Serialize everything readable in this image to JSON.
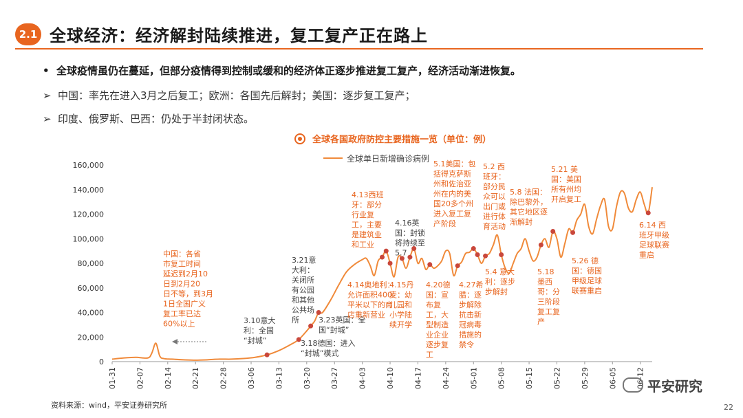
{
  "header": {
    "badge": "2.1",
    "title": "全球经济：经济解封陆续推进，复工复产正在路上"
  },
  "bullets": {
    "main": "全球疫情虽仍在蔓延，但部分疫情得到控制或缓和的经济体正逐步推进复工复产，经济活动渐进恢复。",
    "line2": "中国：率先在进入3月之后复工；欧洲：各国先后解封；美国：逐步复工复产；",
    "line3": "印度、俄罗斯、巴西：仍处于半封闭状态。"
  },
  "colors": {
    "accent": "#e8651f",
    "line": "#f08a3a",
    "marker": "#c9473b"
  },
  "chart_data": {
    "type": "line",
    "title": "全球各国政府防控主要措施一览（单位：例）",
    "series": [
      {
        "name": "全球单日新增确诊病例",
        "x": [
          "01-31",
          "02-03",
          "02-06",
          "02-09",
          "02-10",
          "02-11",
          "02-12",
          "02-13",
          "02-15",
          "02-18",
          "02-21",
          "02-24",
          "02-27",
          "03-01",
          "03-04",
          "03-07",
          "03-10",
          "03-13",
          "03-16",
          "03-18",
          "03-20",
          "03-21",
          "03-22",
          "03-23",
          "03-24",
          "03-26",
          "03-28",
          "03-30",
          "04-01",
          "04-03",
          "04-04",
          "04-05",
          "04-06",
          "04-07",
          "04-08",
          "04-09",
          "04-10",
          "04-11",
          "04-12",
          "04-13",
          "04-14",
          "04-15",
          "04-16",
          "04-17",
          "04-18",
          "04-19",
          "04-20",
          "04-21",
          "04-22",
          "04-23",
          "04-24",
          "04-25",
          "04-26",
          "04-27",
          "04-28",
          "04-29",
          "04-30",
          "05-01",
          "05-02",
          "05-03",
          "05-04",
          "05-05",
          "05-06",
          "05-07",
          "05-08",
          "05-09",
          "05-10",
          "05-11",
          "05-12",
          "05-13",
          "05-14",
          "05-15",
          "05-16",
          "05-17",
          "05-18",
          "05-19",
          "05-20",
          "05-21",
          "05-22",
          "05-23",
          "05-24",
          "05-25",
          "05-26",
          "05-27",
          "05-28",
          "05-29",
          "05-30",
          "05-31",
          "06-01",
          "06-02",
          "06-03",
          "06-04",
          "06-05",
          "06-06",
          "06-07",
          "06-08",
          "06-09",
          "06-10",
          "06-11",
          "06-12",
          "06-13",
          "06-14",
          "06-15"
        ],
        "values": [
          2000,
          3000,
          3500,
          3000,
          7000,
          15000,
          4500,
          2500,
          2000,
          1500,
          1200,
          1500,
          2000,
          2000,
          2500,
          3500,
          5500,
          9000,
          14000,
          18000,
          25000,
          29000,
          33000,
          40000,
          40000,
          50000,
          62000,
          73000,
          79000,
          83000,
          84000,
          78000,
          70000,
          82000,
          85000,
          90000,
          80000,
          69000,
          85000,
          84000,
          76000,
          85000,
          92000,
          80000,
          84000,
          75000,
          79000,
          76000,
          78000,
          82000,
          90000,
          88000,
          70000,
          78000,
          81000,
          88000,
          89000,
          92000,
          87000,
          80000,
          86000,
          88000,
          95000,
          103000,
          87000,
          76000,
          72000,
          80000,
          88000,
          92000,
          100000,
          90000,
          82000,
          85000,
          95000,
          100000,
          93000,
          106000,
          100000,
          85000,
          96000,
          108000,
          105000,
          115000,
          120000,
          128000,
          110000,
          104000,
          116000,
          127000,
          132000,
          110000,
          108000,
          126000,
          138000,
          137000,
          125000,
          122000,
          132000,
          138000,
          128000,
          121000,
          142000
        ]
      }
    ],
    "xticks": [
      "01-31",
      "02-07",
      "02-14",
      "02-21",
      "02-28",
      "03-06",
      "03-13",
      "03-20",
      "03-27",
      "04-03",
      "04-10",
      "04-17",
      "04-24",
      "05-01",
      "05-08",
      "05-15",
      "05-22",
      "05-29",
      "06-05",
      "06-12"
    ],
    "yticks": [
      "0",
      "20,000",
      "40,000",
      "60,000",
      "80,000",
      "100,000",
      "120,000",
      "140,000",
      "160,000"
    ],
    "ylim": [
      0,
      160000
    ],
    "markers": [
      "03-10",
      "03-18",
      "03-21",
      "03-23",
      "04-08",
      "04-09",
      "04-10",
      "04-13",
      "04-15",
      "04-16",
      "04-20",
      "04-27",
      "05-01",
      "05-02",
      "05-04",
      "05-08",
      "05-18",
      "05-21",
      "05-26",
      "06-14"
    ],
    "annotations": [
      {
        "x": "02-10",
        "lines": [
          "中国：各省",
          "市复工时间",
          "延迟到2月10",
          "日到2月20",
          "日不等，到3月",
          "1日全国广义",
          "复工率已达",
          "60%以上"
        ]
      },
      {
        "x": "03-10",
        "lines": [
          "3.10意大",
          "利：全国",
          "“封城”"
        ]
      },
      {
        "x": "03-18",
        "lines": [
          "3.18德国：进入",
          "“封城”模式"
        ]
      },
      {
        "x": "03-21",
        "lines": [
          "3.21意",
          "大利：",
          "关闭所",
          "有公园",
          "和其他",
          "公共场",
          "所"
        ]
      },
      {
        "x": "03-23",
        "lines": [
          "3.23英国：全",
          "国“封城”"
        ]
      },
      {
        "x": "04-13",
        "lines": [
          "4.13西班",
          "牙：部分",
          "行业复",
          "工，主要",
          "是建筑业",
          "和工业"
        ]
      },
      {
        "x": "04-14",
        "lines": [
          "4.14奥地利：",
          "允许面积400",
          "平米以下的商",
          "店重新营业"
        ]
      },
      {
        "x": "04-15",
        "lines": [
          "4.15丹",
          "麦：幼",
          "儿园和",
          "小学陆",
          "续开学"
        ]
      },
      {
        "x": "04-16",
        "lines": [
          "4.16英",
          "国：封锁",
          "将持续至",
          "5.7"
        ]
      },
      {
        "x": "04-20",
        "lines": [
          "4.20德",
          "国：宣",
          "布复",
          "工，大",
          "型制造",
          "业企业",
          "逐步复",
          "工"
        ]
      },
      {
        "x": "04-27",
        "lines": [
          "4.27希",
          "腊：逐",
          "步解除",
          "抗击新",
          "冠病毒",
          "措施的",
          "禁令"
        ]
      },
      {
        "x": "05-01",
        "lines": [
          "5.1美国：包",
          "括得克萨斯",
          "州和佐治亚",
          "州在内的美",
          "国20多个州",
          "进入复工复",
          "产阶段"
        ]
      },
      {
        "x": "05-02",
        "lines": [
          "5.2 西",
          "班牙：",
          "部分民",
          "众可以",
          "出门或",
          "进行体",
          "育活动"
        ]
      },
      {
        "x": "05-04",
        "lines": [
          "5.4 意大",
          "利：逐步",
          "步解封"
        ]
      },
      {
        "x": "05-08",
        "lines": [
          "5.8 法国：",
          "除巴黎外，",
          "其它地区逐",
          "渐解封"
        ]
      },
      {
        "x": "05-18",
        "lines": [
          "5.18",
          "墨西",
          "哥：分",
          "三阶段",
          "复工复",
          "产"
        ]
      },
      {
        "x": "05-21",
        "lines": [
          "5.21 美",
          "国：美国",
          "所有州均",
          "开启复工"
        ]
      },
      {
        "x": "05-26",
        "lines": [
          "5.26 德",
          "国：德国",
          "甲级足球",
          "联赛重启"
        ]
      },
      {
        "x": "06-14",
        "lines": [
          "6.14 西",
          "班牙甲级",
          "足球联赛",
          "重启"
        ]
      }
    ]
  },
  "footer": {
    "source": "资料来源：wind，平安证券研究所",
    "brand": "平安研究",
    "page": "22"
  }
}
